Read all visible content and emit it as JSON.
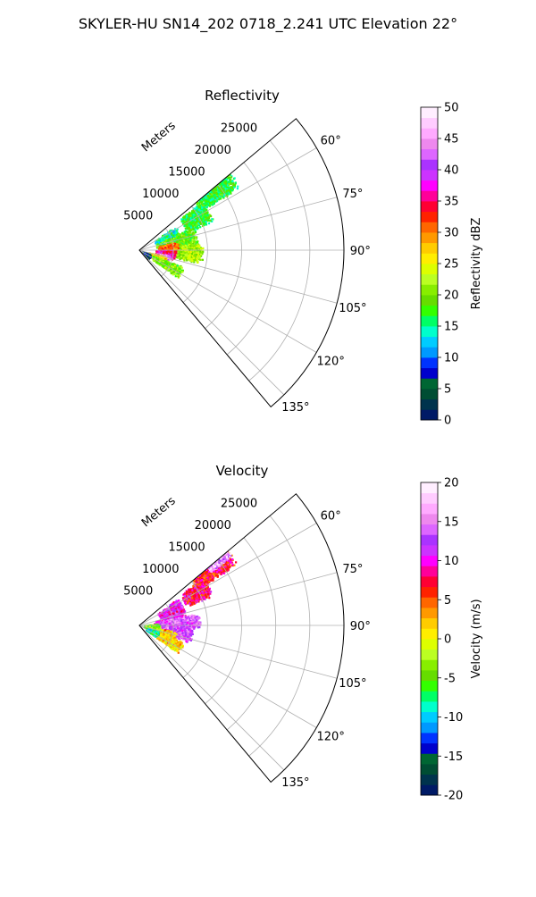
{
  "suptitle": "SKYLER-HU  SN14_202  0718_2.241 UTC Elevation 22°",
  "chart_data": [
    {
      "type": "heatmap",
      "projection": "polar-sector",
      "title": "Reflectivity",
      "radial_axis_label": "Meters",
      "radial_ticks": [
        5000,
        10000,
        15000,
        20000,
        25000
      ],
      "rlim": [
        0,
        30000
      ],
      "theta_range_deg": [
        50,
        140
      ],
      "theta_ticks": [
        60,
        75,
        90,
        105,
        120,
        135
      ],
      "theta_tick_labels": [
        "60°",
        "75°",
        "90°",
        "105°",
        "120°",
        "135°"
      ],
      "grid": true,
      "colorbar": {
        "label": "Reflectivity dBZ",
        "range": [
          0,
          50
        ],
        "ticks": [
          0,
          5,
          10,
          15,
          20,
          25,
          30,
          35,
          40,
          45,
          50
        ],
        "colors": [
          "#001a66",
          "#00334d",
          "#004d33",
          "#006633",
          "#0000cc",
          "#0033ff",
          "#0099ff",
          "#00ccff",
          "#00ffcc",
          "#00ff66",
          "#33ff00",
          "#66dd00",
          "#88ee00",
          "#bbff22",
          "#ddff00",
          "#ffee00",
          "#ffcc00",
          "#ff9900",
          "#ff6600",
          "#ff2200",
          "#ff0033",
          "#ff0099",
          "#ff00ff",
          "#cc33ff",
          "#aa33ff",
          "#dd66ff",
          "#ee88ee",
          "#ffaaff",
          "#ffccff",
          "#ffeeff"
        ]
      },
      "blobs": [
        {
          "theta": 52,
          "r": 14000,
          "dt": 6,
          "dr": 3500,
          "v": 17
        },
        {
          "theta": 60,
          "r": 9500,
          "dt": 9,
          "dr": 2200,
          "v": 17
        },
        {
          "theta": 67,
          "r": 4500,
          "dt": 12,
          "dr": 2000,
          "v": 15
        },
        {
          "theta": 78,
          "r": 5500,
          "dt": 12,
          "dr": 3200,
          "v": 19
        },
        {
          "theta": 92,
          "r": 6500,
          "dt": 10,
          "dr": 3000,
          "v": 22
        },
        {
          "theta": 83,
          "r": 4200,
          "dt": 6,
          "dr": 1500,
          "v": 30
        },
        {
          "theta": 97,
          "r": 3800,
          "dt": 8,
          "dr": 1500,
          "v": 36
        },
        {
          "theta": 104,
          "r": 3500,
          "dt": 5,
          "dr": 1000,
          "v": 44
        },
        {
          "theta": 112,
          "r": 2600,
          "dt": 10,
          "dr": 1500,
          "v": 27
        },
        {
          "theta": 118,
          "r": 4500,
          "dt": 8,
          "dr": 2500,
          "v": 20
        },
        {
          "theta": 122,
          "r": 1000,
          "dt": 12,
          "dr": 800,
          "v": 6
        }
      ]
    },
    {
      "type": "heatmap",
      "projection": "polar-sector",
      "title": "Velocity",
      "radial_axis_label": "Meters",
      "radial_ticks": [
        5000,
        10000,
        15000,
        20000,
        25000
      ],
      "rlim": [
        0,
        30000
      ],
      "theta_range_deg": [
        50,
        140
      ],
      "theta_ticks": [
        60,
        75,
        90,
        105,
        120,
        135
      ],
      "theta_tick_labels": [
        "60°",
        "75°",
        "90°",
        "105°",
        "120°",
        "135°"
      ],
      "grid": true,
      "colorbar": {
        "label": "Velocity (m/s)",
        "range": [
          -20,
          20
        ],
        "ticks": [
          -20,
          -15,
          -10,
          -5,
          0,
          5,
          10,
          15,
          20
        ],
        "colors": [
          "#001a66",
          "#00334d",
          "#004d33",
          "#006633",
          "#0000cc",
          "#0033ff",
          "#0099ff",
          "#00ccff",
          "#00ffcc",
          "#00ff66",
          "#33ff00",
          "#66dd00",
          "#88ee00",
          "#bbff22",
          "#ddff00",
          "#ffee00",
          "#ffcc00",
          "#ff9900",
          "#ff6600",
          "#ff2200",
          "#ff0033",
          "#ff0099",
          "#ff00ff",
          "#cc33ff",
          "#aa33ff",
          "#dd66ff",
          "#ee88ee",
          "#ffaaff",
          "#ffccff",
          "#ffeeff"
        ]
      },
      "blobs": [
        {
          "theta": 52,
          "r": 13500,
          "dt": 6,
          "dr": 3500,
          "v": 7
        },
        {
          "theta": 50,
          "r": 15000,
          "dt": 3,
          "dr": 2000,
          "v": 16
        },
        {
          "theta": 60,
          "r": 9500,
          "dt": 8,
          "dr": 2200,
          "v": 8
        },
        {
          "theta": 66,
          "r": 5000,
          "dt": 12,
          "dr": 2000,
          "v": 11
        },
        {
          "theta": 82,
          "r": 4500,
          "dt": 10,
          "dr": 2500,
          "v": 12
        },
        {
          "theta": 85,
          "r": 6000,
          "dt": 8,
          "dr": 3000,
          "v": 14
        },
        {
          "theta": 97,
          "r": 5500,
          "dt": 12,
          "dr": 2500,
          "v": 13
        },
        {
          "theta": 108,
          "r": 3500,
          "dt": 10,
          "dr": 2000,
          "v": 2
        },
        {
          "theta": 118,
          "r": 4500,
          "dt": 8,
          "dr": 2500,
          "v": 1
        },
        {
          "theta": 95,
          "r": 1800,
          "dt": 12,
          "dr": 1200,
          "v": -4
        },
        {
          "theta": 116,
          "r": 2000,
          "dt": 8,
          "dr": 1000,
          "v": -8
        }
      ]
    }
  ]
}
